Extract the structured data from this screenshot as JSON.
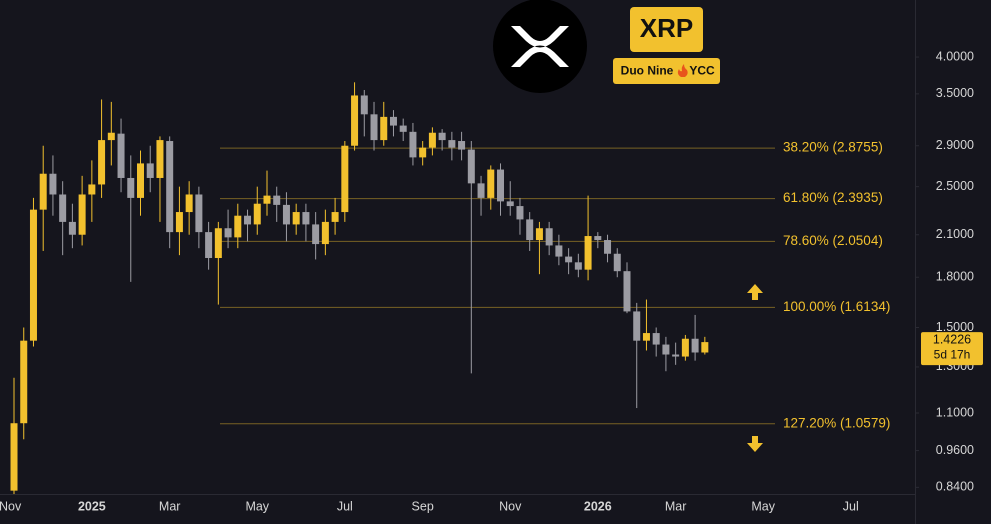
{
  "chart_data": {
    "type": "candlestick",
    "title": "XRP",
    "badge_left": "Duo Nine",
    "badge_right": "YCC",
    "log_scale": true,
    "up_color": "#f2c12e",
    "down_color": "#9c9ca3",
    "ylim": [
      0.82,
      4.92
    ],
    "yticks": [
      {
        "value": 0.84,
        "label": "0.8400"
      },
      {
        "value": 0.96,
        "label": "0.9600"
      },
      {
        "value": 1.1,
        "label": "1.1000"
      },
      {
        "value": 1.3,
        "label": "1.3000"
      },
      {
        "value": 1.5,
        "label": "1.5000"
      },
      {
        "value": 1.8,
        "label": "1.8000"
      },
      {
        "value": 2.1,
        "label": "2.1000"
      },
      {
        "value": 2.5,
        "label": "2.5000"
      },
      {
        "value": 2.9,
        "label": "2.9000"
      },
      {
        "value": 3.5,
        "label": "3.5000"
      },
      {
        "value": 4,
        "label": "4.0000"
      }
    ],
    "xlim": [
      -1.44,
      92.6
    ],
    "xticks": [
      {
        "value": -0.4,
        "label": "Nov"
      },
      {
        "value": 8,
        "label": "2025"
      },
      {
        "value": 16,
        "label": "Mar"
      },
      {
        "value": 25,
        "label": "May"
      },
      {
        "value": 34,
        "label": "Jul"
      },
      {
        "value": 42,
        "label": "Sep"
      },
      {
        "value": 51,
        "label": "Nov"
      },
      {
        "value": 60,
        "label": "2026"
      },
      {
        "value": 68,
        "label": "Mar"
      },
      {
        "value": 77,
        "label": "May"
      },
      {
        "value": 86,
        "label": "Jul"
      }
    ],
    "open": [
      0.83,
      1.06,
      1.43,
      2.3,
      2.62,
      2.43,
      2.2,
      2.1,
      2.43,
      2.52,
      2.96,
      3.03,
      2.58,
      2.4,
      2.72,
      2.58,
      2.95,
      2.12,
      2.28,
      2.43,
      2.12,
      1.93,
      2.15,
      2.08,
      2.25,
      2.18,
      2.35,
      2.42,
      2.34,
      2.18,
      2.28,
      2.18,
      2.03,
      2.2,
      2.28,
      2.9,
      3.48,
      3.25,
      2.96,
      3.22,
      3.12,
      3.05,
      2.78,
      2.88,
      3.04,
      2.96,
      2.95,
      2.86,
      2.53,
      2.4,
      2.66,
      2.37,
      2.33,
      2.22,
      2.06,
      2.15,
      2.02,
      1.94,
      1.9,
      1.85,
      2.09,
      2.06,
      1.96,
      1.84,
      1.59,
      1.43,
      1.47,
      1.41,
      1.36,
      1.35,
      1.44,
      1.37
    ],
    "high": [
      1.25,
      1.5,
      2.4,
      2.9,
      2.8,
      2.55,
      2.35,
      2.6,
      2.75,
      3.43,
      3.4,
      3.2,
      2.8,
      2.85,
      2.9,
      3.0,
      3.0,
      2.5,
      2.55,
      2.5,
      2.2,
      2.2,
      2.3,
      2.35,
      2.3,
      2.5,
      2.65,
      2.5,
      2.45,
      2.35,
      2.35,
      2.28,
      2.3,
      2.4,
      2.95,
      3.65,
      3.55,
      3.4,
      3.4,
      3.3,
      3.2,
      3.15,
      2.95,
      3.1,
      3.08,
      3.05,
      3.05,
      2.95,
      2.6,
      2.7,
      2.72,
      2.55,
      2.4,
      2.28,
      2.2,
      2.2,
      2.1,
      2.0,
      1.96,
      2.42,
      2.12,
      2.1,
      2.0,
      1.9,
      1.64,
      1.66,
      1.5,
      1.45,
      1.42,
      1.46,
      1.57,
      1.45
    ],
    "low": [
      0.8,
      1.0,
      1.4,
      1.98,
      2.25,
      1.95,
      2.0,
      2.02,
      2.2,
      2.4,
      2.7,
      2.45,
      1.77,
      2.25,
      2.45,
      2.2,
      2.0,
      1.95,
      2.1,
      2.0,
      1.85,
      1.63,
      2.0,
      2.0,
      2.05,
      2.1,
      2.25,
      2.2,
      2.05,
      2.1,
      2.05,
      1.92,
      1.95,
      2.1,
      2.2,
      2.85,
      3.0,
      2.85,
      2.9,
      3.0,
      2.95,
      2.7,
      2.7,
      2.8,
      2.85,
      2.75,
      2.75,
      1.27,
      2.25,
      2.3,
      2.25,
      2.25,
      2.1,
      1.98,
      1.82,
      1.95,
      1.88,
      1.82,
      1.8,
      1.78,
      2.0,
      1.9,
      1.8,
      1.58,
      1.12,
      1.38,
      1.35,
      1.28,
      1.31,
      1.33,
      1.33,
      1.36
    ],
    "close": [
      1.06,
      1.43,
      2.3,
      2.62,
      2.43,
      2.2,
      2.1,
      2.43,
      2.52,
      2.96,
      3.04,
      2.58,
      2.4,
      2.72,
      2.58,
      2.96,
      2.12,
      2.28,
      2.43,
      2.12,
      1.93,
      2.15,
      2.08,
      2.25,
      2.18,
      2.35,
      2.42,
      2.34,
      2.18,
      2.28,
      2.18,
      2.03,
      2.2,
      2.28,
      2.9,
      3.48,
      3.25,
      2.96,
      3.22,
      3.12,
      3.05,
      2.78,
      2.88,
      3.04,
      2.96,
      2.88,
      2.86,
      2.53,
      2.4,
      2.66,
      2.37,
      2.33,
      2.22,
      2.06,
      2.15,
      2.02,
      1.94,
      1.9,
      1.85,
      2.09,
      2.06,
      1.96,
      1.84,
      1.59,
      1.43,
      1.47,
      1.41,
      1.36,
      1.35,
      1.44,
      1.37,
      1.4226
    ],
    "last_price": {
      "value": 1.4226,
      "label": "1.4226",
      "countdown": "5d 17h"
    },
    "fib_levels": [
      {
        "value": 2.8755,
        "label": "38.20% (2.8755)"
      },
      {
        "value": 2.3935,
        "label": "61.80% (2.3935)"
      },
      {
        "value": 2.0504,
        "label": "78.60% (2.0504)"
      },
      {
        "value": 1.6134,
        "label": "100.00% (1.6134)"
      },
      {
        "value": 1.0579,
        "label": "127.20% (1.0579)"
      }
    ],
    "fib_color": "#f2c12e"
  }
}
